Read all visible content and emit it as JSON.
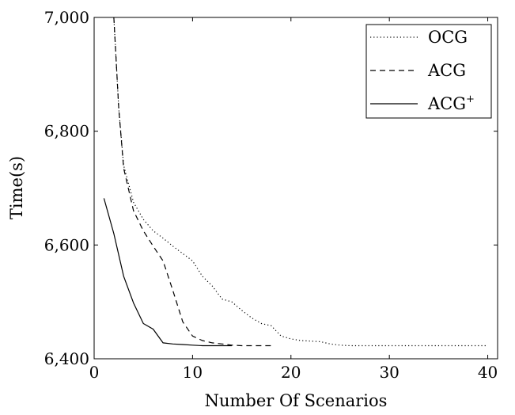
{
  "chart_data": {
    "type": "line",
    "title": "",
    "xlabel": "Number Of Scenarios",
    "ylabel": "Time(s)",
    "xlim": [
      0,
      41
    ],
    "ylim": [
      6400,
      7000
    ],
    "xticks": [
      0,
      10,
      20,
      30,
      40
    ],
    "yticks": [
      6400,
      6600,
      6800,
      7000
    ],
    "xtick_labels": [
      "0",
      "10",
      "20",
      "30",
      "40"
    ],
    "ytick_labels": [
      "6,400",
      "6,600",
      "6,800",
      "7,000"
    ],
    "grid": false,
    "legend_position": "top-right",
    "series": [
      {
        "name": "OCG",
        "legend_base": "OCG",
        "legend_sup": "",
        "style": "dotted",
        "x": [
          2,
          2.5,
          3,
          4,
          5,
          6,
          7,
          8,
          9,
          10,
          11,
          12,
          13,
          14,
          15,
          16,
          17,
          18,
          19,
          20,
          21,
          22,
          23,
          24,
          25,
          26,
          28,
          30,
          32,
          34,
          36,
          38,
          40
        ],
        "y": [
          7000,
          6840,
          6740,
          6675,
          6645,
          6625,
          6612,
          6598,
          6585,
          6572,
          6545,
          6528,
          6505,
          6500,
          6485,
          6472,
          6462,
          6458,
          6440,
          6435,
          6432,
          6431,
          6430,
          6426,
          6424,
          6423,
          6423,
          6423,
          6423,
          6423,
          6423,
          6423,
          6423
        ]
      },
      {
        "name": "ACG",
        "legend_base": "ACG",
        "legend_sup": "",
        "style": "dashed",
        "x": [
          2,
          2.5,
          3,
          4,
          5,
          6,
          7,
          8,
          9,
          10,
          11,
          12,
          13,
          14,
          15,
          16,
          17,
          18
        ],
        "y": [
          7000,
          6840,
          6735,
          6660,
          6625,
          6598,
          6572,
          6520,
          6465,
          6440,
          6432,
          6428,
          6426,
          6424,
          6423,
          6423,
          6423,
          6423
        ]
      },
      {
        "name": "ACG+",
        "legend_base": "ACG",
        "legend_sup": "+",
        "style": "solid",
        "x": [
          1,
          2,
          3,
          4,
          5,
          6,
          7,
          8,
          9,
          10,
          11,
          12,
          13,
          14
        ],
        "y": [
          6682,
          6620,
          6545,
          6498,
          6462,
          6452,
          6428,
          6426,
          6425,
          6424,
          6423,
          6423,
          6423,
          6423
        ]
      }
    ]
  }
}
